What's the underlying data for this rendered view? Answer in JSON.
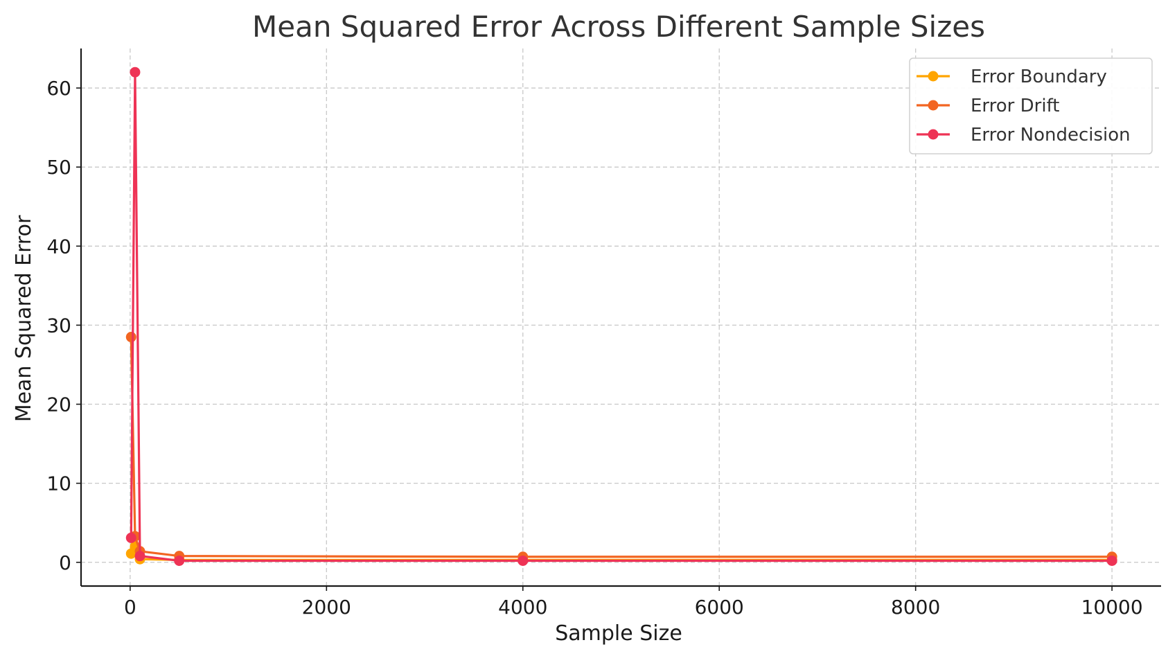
{
  "chart_data": {
    "type": "line",
    "title": "Mean Squared Error Across Different Sample Sizes",
    "xlabel": "Sample Size",
    "ylabel": "Mean Squared Error",
    "x": [
      10,
      50,
      100,
      500,
      4000,
      10000
    ],
    "xlim": [
      -500,
      10500
    ],
    "ylim": [
      -3,
      65
    ],
    "xticks": [
      0,
      2000,
      4000,
      6000,
      8000,
      10000
    ],
    "yticks": [
      0,
      10,
      20,
      30,
      40,
      50,
      60
    ],
    "grid": true,
    "legend_position": "top-right",
    "series": [
      {
        "name": "Error Boundary",
        "color": "#FFA500",
        "values": [
          1.1,
          2.0,
          0.4,
          0.3,
          0.3,
          0.3
        ]
      },
      {
        "name": "Error Drift",
        "color": "#F26522",
        "values": [
          28.5,
          3.3,
          1.4,
          0.8,
          0.7,
          0.7
        ]
      },
      {
        "name": "Error Nondecision",
        "color": "#EE3355",
        "values": [
          3.1,
          62.0,
          0.8,
          0.2,
          0.2,
          0.2
        ]
      }
    ]
  }
}
